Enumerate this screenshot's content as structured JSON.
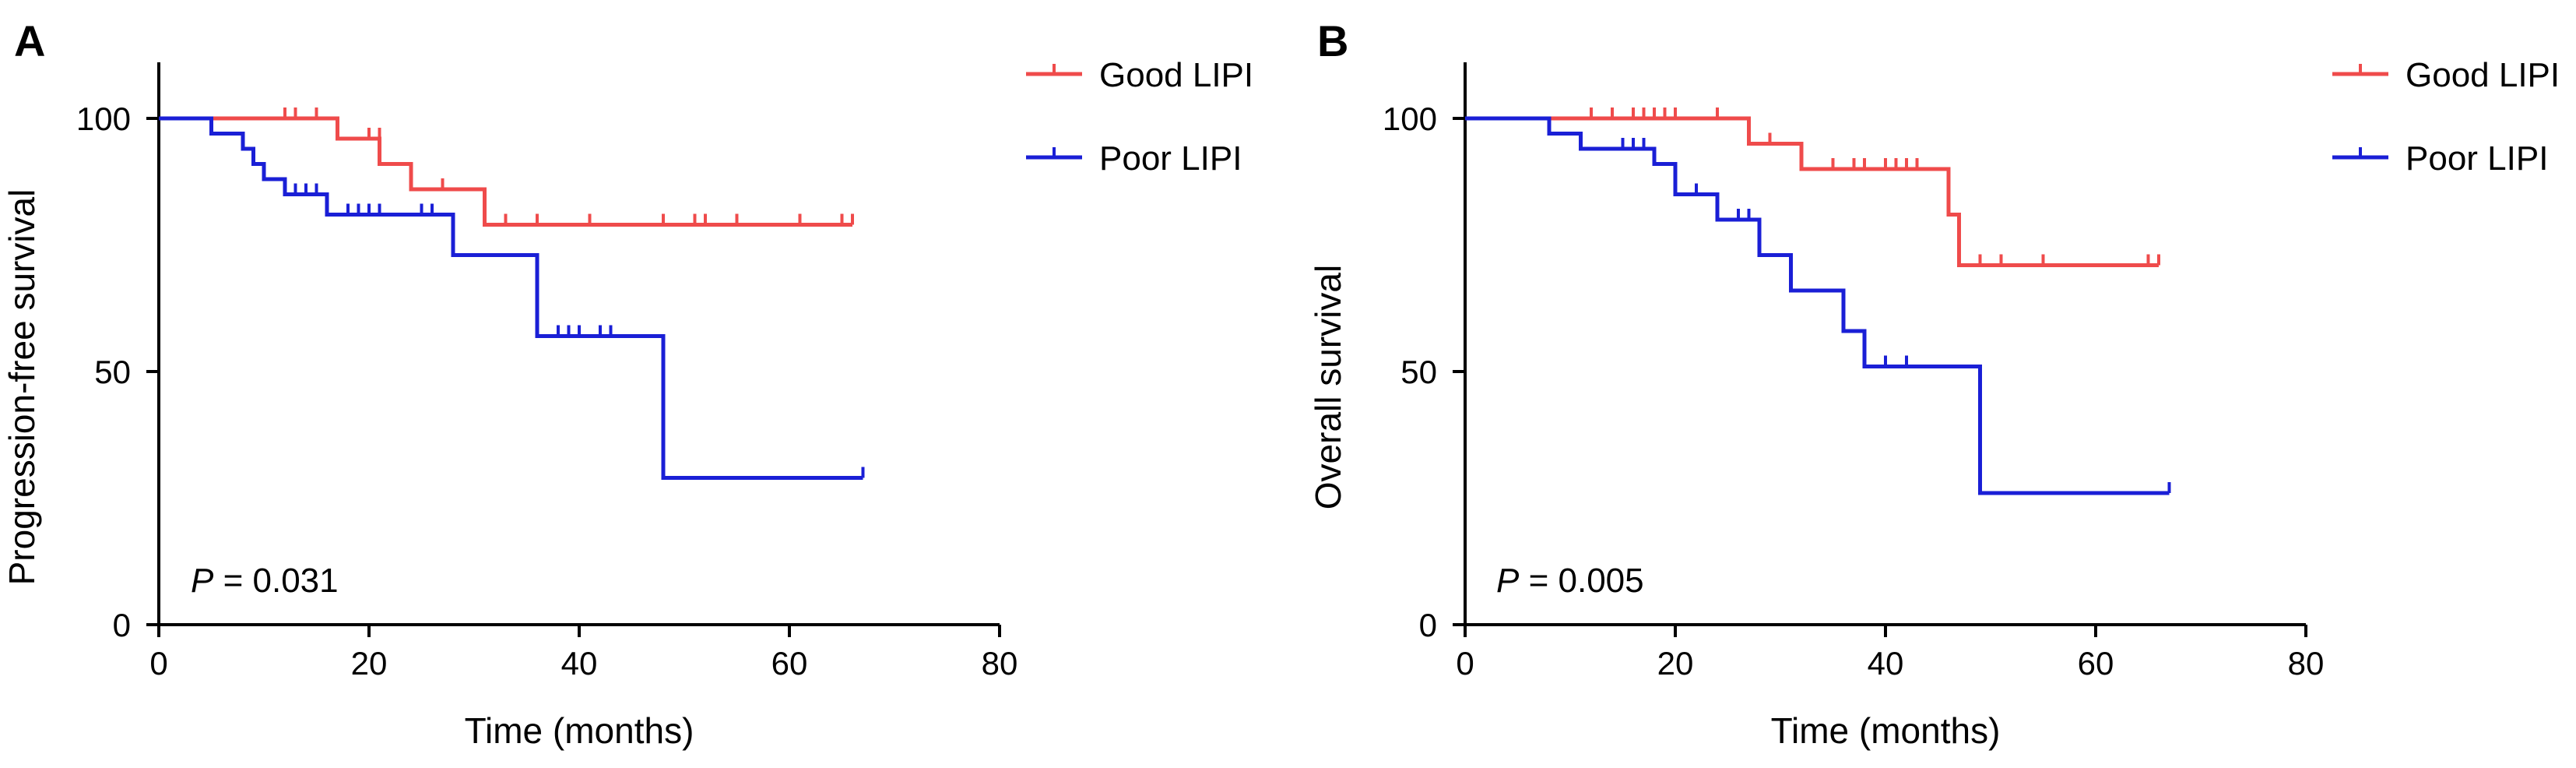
{
  "chart_data": [
    {
      "panel": "A",
      "type": "line",
      "step": true,
      "title": "",
      "xlabel": "Time (months)",
      "ylabel": "Progression-free survival",
      "xlim": [
        0,
        80
      ],
      "ylim": [
        0,
        100
      ],
      "xticks": [
        "0",
        "20",
        "40",
        "60",
        "80"
      ],
      "yticks": [
        "0",
        "50",
        "100"
      ],
      "grid": false,
      "legend_position": "top-right",
      "annotation": {
        "p_symbol": "P",
        "p_text": " = 0.031"
      },
      "series": [
        {
          "name": "Good LIPI",
          "color": "#ef4b4b",
          "steps": [
            [
              0,
              100
            ],
            [
              17,
              96
            ],
            [
              21,
              91
            ],
            [
              24,
              86
            ],
            [
              31,
              79
            ],
            [
              66,
              79
            ]
          ],
          "censored": [
            [
              12,
              100
            ],
            [
              13,
              100
            ],
            [
              15,
              100
            ],
            [
              20,
              96
            ],
            [
              21,
              96
            ],
            [
              27,
              86
            ],
            [
              33,
              79
            ],
            [
              36,
              79
            ],
            [
              41,
              79
            ],
            [
              48,
              79
            ],
            [
              51,
              79
            ],
            [
              52,
              79
            ],
            [
              55,
              79
            ],
            [
              61,
              79
            ],
            [
              65,
              79
            ],
            [
              66,
              79
            ]
          ]
        },
        {
          "name": "Poor LIPI",
          "color": "#1a1fd6",
          "steps": [
            [
              0,
              100
            ],
            [
              5,
              97
            ],
            [
              8,
              94
            ],
            [
              9,
              91
            ],
            [
              10,
              88
            ],
            [
              12,
              85
            ],
            [
              16,
              81
            ],
            [
              28,
              73
            ],
            [
              36,
              57
            ],
            [
              48,
              29
            ],
            [
              67,
              29
            ]
          ],
          "censored": [
            [
              13,
              85
            ],
            [
              14,
              85
            ],
            [
              15,
              85
            ],
            [
              18,
              81
            ],
            [
              19,
              81
            ],
            [
              20,
              81
            ],
            [
              21,
              81
            ],
            [
              25,
              81
            ],
            [
              26,
              81
            ],
            [
              38,
              57
            ],
            [
              39,
              57
            ],
            [
              40,
              57
            ],
            [
              42,
              57
            ],
            [
              43,
              57
            ],
            [
              67,
              29
            ]
          ]
        }
      ]
    },
    {
      "panel": "B",
      "type": "line",
      "step": true,
      "title": "",
      "xlabel": "Time (months)",
      "ylabel": "Overall survival",
      "xlim": [
        0,
        80
      ],
      "ylim": [
        0,
        100
      ],
      "xticks": [
        "0",
        "20",
        "40",
        "60",
        "80"
      ],
      "yticks": [
        "0",
        "50",
        "100"
      ],
      "grid": false,
      "legend_position": "top-right",
      "annotation": {
        "p_symbol": "P",
        "p_text": " = 0.005"
      },
      "series": [
        {
          "name": "Good LIPI",
          "color": "#ef4b4b",
          "steps": [
            [
              0,
              100
            ],
            [
              27,
              95
            ],
            [
              32,
              90
            ],
            [
              46,
              81
            ],
            [
              47,
              71
            ],
            [
              66,
              71
            ]
          ],
          "censored": [
            [
              12,
              100
            ],
            [
              14,
              100
            ],
            [
              16,
              100
            ],
            [
              17,
              100
            ],
            [
              18,
              100
            ],
            [
              19,
              100
            ],
            [
              20,
              100
            ],
            [
              24,
              100
            ],
            [
              29,
              95
            ],
            [
              35,
              90
            ],
            [
              37,
              90
            ],
            [
              38,
              90
            ],
            [
              40,
              90
            ],
            [
              41,
              90
            ],
            [
              42,
              90
            ],
            [
              43,
              90
            ],
            [
              49,
              71
            ],
            [
              51,
              71
            ],
            [
              55,
              71
            ],
            [
              65,
              71
            ],
            [
              66,
              71
            ]
          ]
        },
        {
          "name": "Poor LIPI",
          "color": "#1a1fd6",
          "steps": [
            [
              0,
              100
            ],
            [
              8,
              97
            ],
            [
              11,
              94
            ],
            [
              18,
              91
            ],
            [
              20,
              85
            ],
            [
              24,
              80
            ],
            [
              28,
              73
            ],
            [
              31,
              66
            ],
            [
              36,
              58
            ],
            [
              38,
              51
            ],
            [
              49,
              26
            ],
            [
              67,
              26
            ]
          ],
          "censored": [
            [
              15,
              94
            ],
            [
              16,
              94
            ],
            [
              17,
              94
            ],
            [
              22,
              85
            ],
            [
              26,
              80
            ],
            [
              27,
              80
            ],
            [
              40,
              51
            ],
            [
              42,
              51
            ],
            [
              67,
              26
            ]
          ]
        }
      ]
    }
  ]
}
